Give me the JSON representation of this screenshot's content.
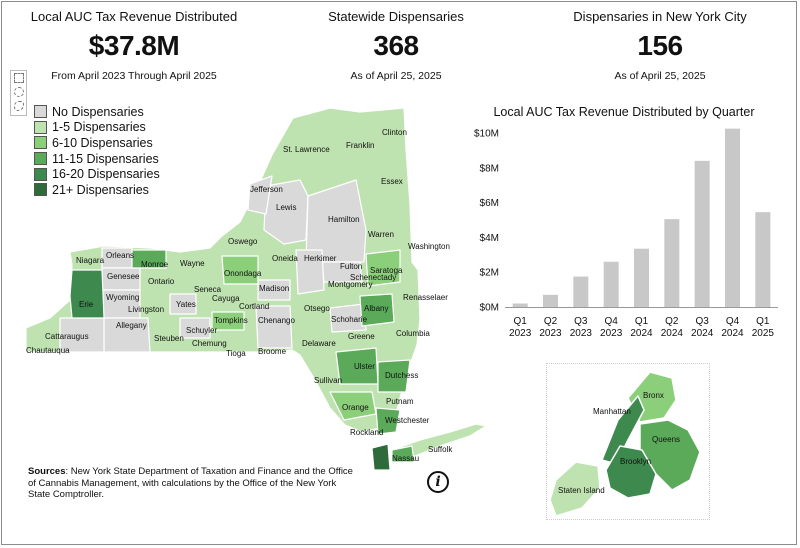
{
  "kpis": [
    {
      "title": "Local AUC Tax Revenue Distributed",
      "value": "$37.8M",
      "sub": "From April 2023 Through April 2025"
    },
    {
      "title": "Statewide Dispensaries",
      "value": "368",
      "sub": "As of April 25, 2025"
    },
    {
      "title": "Dispensaries in New York City",
      "value": "156",
      "sub": "As of April 25, 2025"
    }
  ],
  "legend": {
    "items": [
      {
        "label": "No Dispensaries",
        "color": "#d9d9d9"
      },
      {
        "label": "1-5 Dispensaries",
        "color": "#bfe3b0"
      },
      {
        "label": "6-10 Dispensaries",
        "color": "#8ccf7b"
      },
      {
        "label": "11-15 Dispensaries",
        "color": "#5aaa5a"
      },
      {
        "label": "16-20 Dispensaries",
        "color": "#3e8a4e"
      },
      {
        "label": "21+ Dispensaries",
        "color": "#2f6a3a"
      }
    ]
  },
  "map_labels": {
    "clinton": "Clinton",
    "st_lawrence": "St. Lawrence",
    "franklin": "Franklin",
    "essex": "Essex",
    "jefferson": "Jefferson",
    "lewis": "Lewis",
    "hamilton": "Hamilton",
    "warren": "Warren",
    "washington": "Washington",
    "oswego": "Oswego",
    "oneida": "Oneida",
    "herkimer": "Herkimer",
    "fulton": "Fulton",
    "saratoga": "Saratoga",
    "niagara": "Niagara",
    "orleans": "Orleans",
    "monroe": "Monroe",
    "wayne": "Wayne",
    "genesee": "Genesee",
    "onondaga": "Onondaga",
    "schenectady": "Schenectady",
    "montgomery": "Montgomery",
    "ontario": "Ontario",
    "seneca": "Seneca",
    "madison": "Madison",
    "erie": "Erie",
    "wyoming": "Wyoming",
    "cayuga": "Cayuga",
    "yates": "Yates",
    "cortland": "Cortland",
    "rensselaer": "Renasselaer",
    "livingston": "Livingston",
    "otsego": "Otsego",
    "albany": "Albany",
    "schoharie": "Schoharie",
    "allegany": "Allegany",
    "tompkins": "Tompkins",
    "chenango": "Chenango",
    "schuyler": "Schuyler",
    "cattaraugus": "Cattaraugus",
    "steuben": "Steuben",
    "chemung": "Chemung",
    "columbia": "Columbia",
    "greene": "Greene",
    "delaware": "Delaware",
    "chautauqua": "Chautauqua",
    "tioga": "Tioga",
    "broome": "Broome",
    "ulster": "Ulster",
    "sullivan": "Sullivan",
    "dutchess": "Dutchess",
    "putnam": "Putnam",
    "orange": "Orange",
    "westchester": "Westchester",
    "rockland": "Rockland",
    "suffolk": "Suffolk",
    "nassau": "Nassau"
  },
  "nyc_labels": {
    "bronx": "Bronx",
    "manhattan": "Manhattan",
    "queens": "Queens",
    "brooklyn": "Brooklyn",
    "staten_island": "Staten Island"
  },
  "sources": {
    "label": "Sources",
    "text": ": New York State Department of Taxation and Finance and the Office of Cannabis Management, with calculations by the Office of the New York State Comptroller."
  },
  "info_glyph": "i",
  "chart_data": {
    "type": "bar",
    "title": "Local AUC Tax Revenue Distributed by Quarter",
    "categories": [
      [
        "Q1",
        "2023"
      ],
      [
        "Q2",
        "2023"
      ],
      [
        "Q3",
        "2023"
      ],
      [
        "Q4",
        "2023"
      ],
      [
        "Q1",
        "2024"
      ],
      [
        "Q2",
        "2024"
      ],
      [
        "Q3",
        "2024"
      ],
      [
        "Q4",
        "2024"
      ],
      [
        "Q1",
        "2025"
      ]
    ],
    "values": [
      0.2,
      0.7,
      1.75,
      2.6,
      3.35,
      5.05,
      8.4,
      10.25,
      5.45
    ],
    "yunit": "millions USD",
    "ylim": [
      0,
      10
    ],
    "yticks": [
      0,
      2,
      4,
      6,
      8,
      10
    ],
    "ytick_labels": [
      "$0M",
      "$2M",
      "$4M",
      "$6M",
      "$8M",
      "$10M"
    ],
    "bar_color": "#c8c8c8",
    "grid": false
  }
}
